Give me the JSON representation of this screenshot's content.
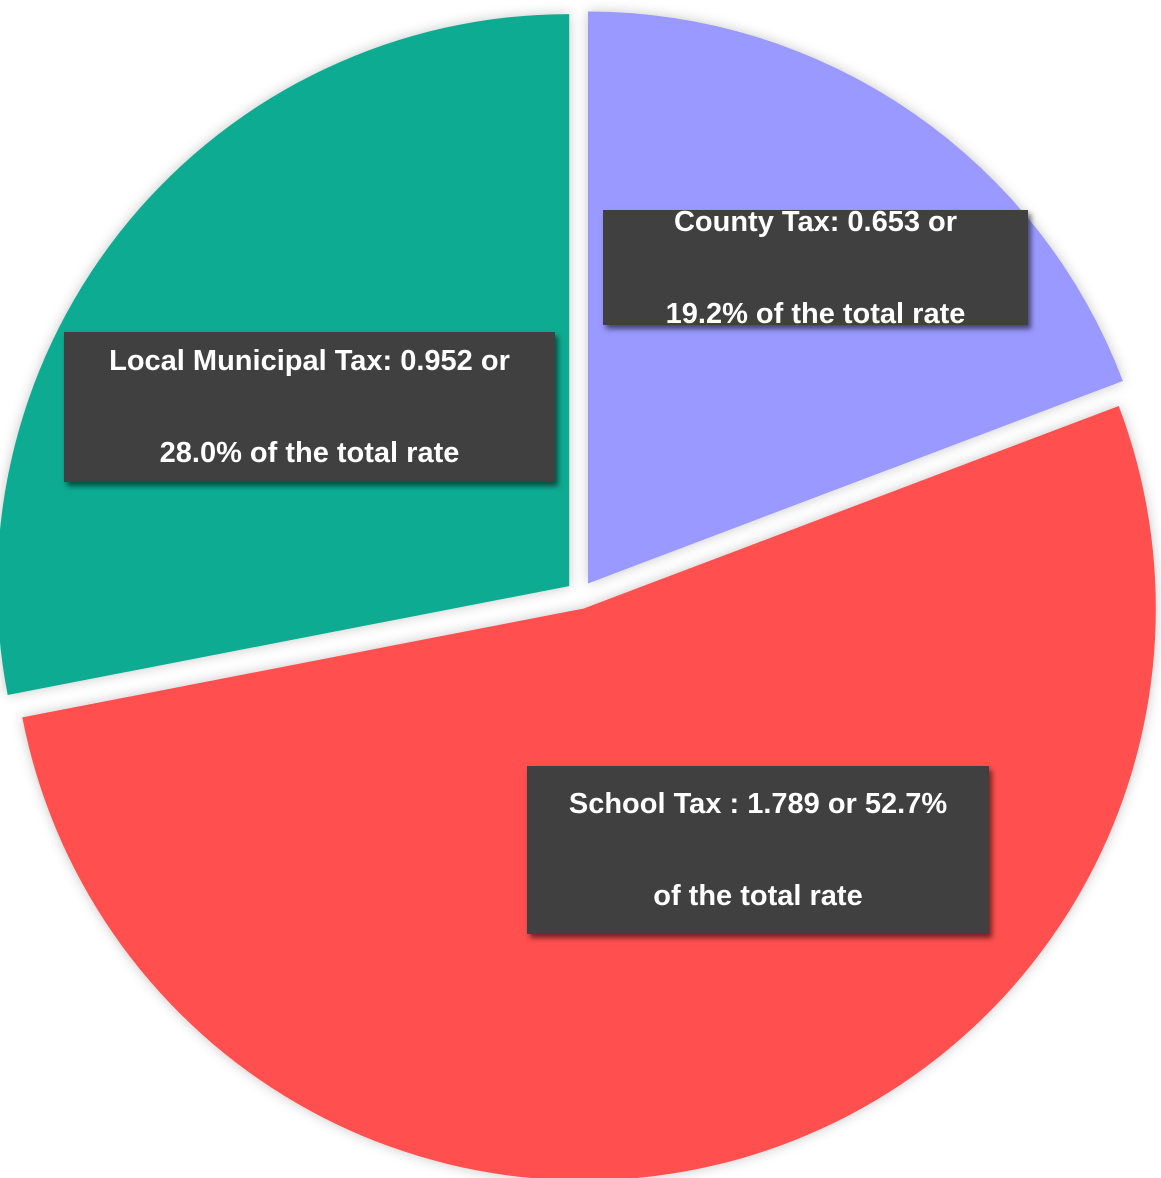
{
  "chart_data": {
    "type": "pie",
    "slices": [
      {
        "name": "County Tax",
        "value": 0.653,
        "percent": 19.2,
        "color": "#9999ff",
        "label_line1": "County Tax: 0.653 or",
        "label_line2": "19.2% of the total rate"
      },
      {
        "name": "School Tax",
        "value": 1.789,
        "percent": 52.7,
        "color": "#ff5050",
        "label_line1": "School Tax : 1.789 or 52.7%",
        "label_line2": "of the total rate"
      },
      {
        "name": "Local Municipal Tax",
        "value": 0.952,
        "percent": 28.0,
        "color": "#0eab91",
        "label_line1": "Local Municipal Tax: 0.952 or",
        "label_line2": "28.0% of the total rate"
      }
    ],
    "start_angle_deg": 0,
    "direction": "clockwise",
    "exploded": true,
    "legend": "none"
  }
}
